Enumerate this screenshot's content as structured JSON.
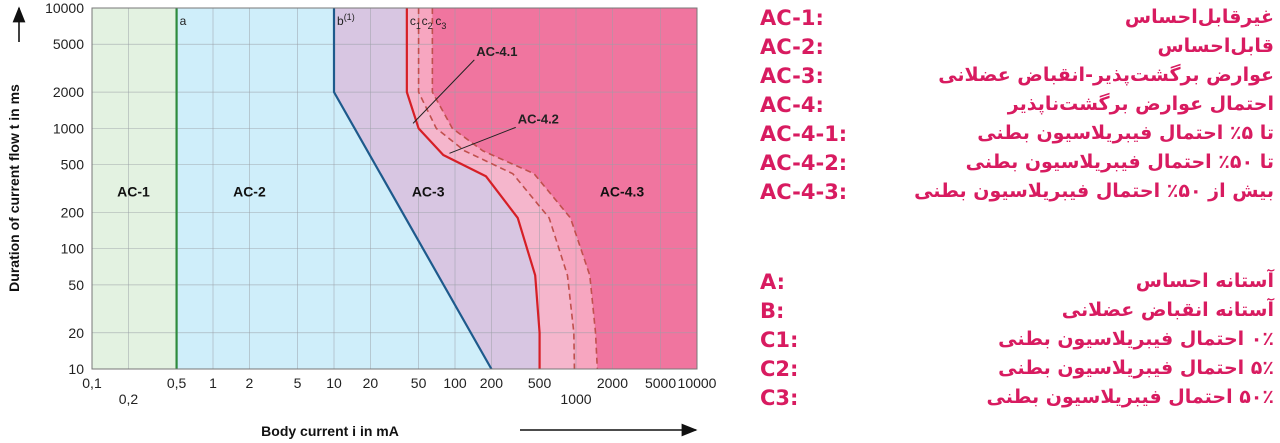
{
  "chart_data": {
    "type": "area",
    "xlabel": "Body current i   in mA",
    "ylabel": "Duration of current flow t in ms",
    "x_scale": "log",
    "y_scale": "log",
    "xlim": [
      0.1,
      10000
    ],
    "ylim": [
      10,
      10000
    ],
    "x_ticks_top_row": [
      "0,1",
      "0,5",
      "1",
      "2",
      "5",
      "10",
      "20",
      "50",
      "100",
      "200",
      "500",
      "2000",
      "5000",
      "10000"
    ],
    "x_ticks_bottom_row": [
      "0,2",
      "1000"
    ],
    "x_tick_values": [
      0.1,
      0.2,
      0.5,
      1,
      2,
      5,
      10,
      20,
      50,
      100,
      200,
      500,
      1000,
      2000,
      5000,
      10000
    ],
    "y_ticks": [
      "10",
      "20",
      "50",
      "100",
      "200",
      "500",
      "1000",
      "2000",
      "5000",
      "10000"
    ],
    "y_tick_values": [
      10,
      20,
      50,
      100,
      200,
      500,
      1000,
      2000,
      5000,
      10000
    ],
    "regions": [
      {
        "name": "AC-1",
        "color": "#e3f2e1"
      },
      {
        "name": "AC-2",
        "color": "#cfeefa"
      },
      {
        "name": "AC-3",
        "color": "#d8c6e2"
      },
      {
        "name": "AC-4.3",
        "color": "#f0759f"
      }
    ],
    "curves": [
      {
        "name": "a",
        "style": "solid",
        "color": "#2e8b3e",
        "points": [
          [
            0.5,
            10
          ],
          [
            0.5,
            10000
          ]
        ]
      },
      {
        "name": "b(1)",
        "style": "solid",
        "color": "#1e5a8c",
        "points": [
          [
            10,
            10000
          ],
          [
            10,
            2000
          ],
          [
            200,
            10
          ]
        ]
      },
      {
        "name": "c1",
        "style": "solid",
        "color": "#d61f26",
        "points": [
          [
            40,
            10000
          ],
          [
            40,
            2000
          ],
          [
            50,
            1000
          ],
          [
            80,
            600
          ],
          [
            180,
            400
          ],
          [
            330,
            180
          ],
          [
            460,
            60
          ],
          [
            500,
            20
          ],
          [
            500,
            10
          ]
        ]
      },
      {
        "name": "c2",
        "style": "dashed",
        "color": "#c0504d",
        "points": [
          [
            50,
            10000
          ],
          [
            50,
            2000
          ],
          [
            70,
            1000
          ],
          [
            120,
            650
          ],
          [
            300,
            420
          ],
          [
            600,
            180
          ],
          [
            850,
            60
          ],
          [
            960,
            20
          ],
          [
            970,
            10
          ]
        ]
      },
      {
        "name": "c3",
        "style": "dashed",
        "color": "#c0504d",
        "points": [
          [
            65,
            10000
          ],
          [
            65,
            2000
          ],
          [
            95,
            1000
          ],
          [
            170,
            650
          ],
          [
            450,
            420
          ],
          [
            900,
            180
          ],
          [
            1300,
            60
          ],
          [
            1450,
            20
          ],
          [
            1500,
            10
          ]
        ]
      }
    ],
    "region_labels": [
      {
        "text": "AC-1",
        "x": 0.22,
        "y": 300
      },
      {
        "text": "AC-2",
        "x": 2,
        "y": 300
      },
      {
        "text": "AC-3",
        "x": 60,
        "y": 300
      },
      {
        "text": "AC-4.3",
        "x": 2400,
        "y": 300
      }
    ],
    "callouts": [
      {
        "text": "AC-4.1",
        "label_at": [
          150,
          4000
        ],
        "points_to": [
          45,
          1100
        ]
      },
      {
        "text": "AC-4.2",
        "label_at": [
          330,
          1100
        ],
        "points_to": [
          90,
          620
        ]
      }
    ],
    "threshold_labels": [
      {
        "text": "a",
        "x": 0.5
      },
      {
        "text": "b",
        "sup": "(1)",
        "x": 10
      },
      {
        "text": "c",
        "sub": "1",
        "x": 40
      },
      {
        "text": "c",
        "sub": "2",
        "x": 50
      },
      {
        "text": "c",
        "sub": "3",
        "x": 65
      }
    ]
  },
  "legend": {
    "zones": [
      {
        "code": "AC-1:",
        "text": "غیرقابل‌احساس"
      },
      {
        "code": "AC-2:",
        "text": "قابل‌احساس"
      },
      {
        "code": "AC-3:",
        "text": "عوارض برگشت‌پذیر-انقباض عضلانی"
      },
      {
        "code": "AC-4:",
        "text": "احتمال عوارض برگشت‌ناپذیر"
      },
      {
        "code": "AC-4-1:",
        "text": "تا ۵٪ احتمال فیبریلاسیون بطنی"
      },
      {
        "code": "AC-4-2:",
        "text": "تا ۵۰٪ احتمال فیبریلاسیون بطنی"
      },
      {
        "code": "AC-4-3:",
        "text": "بیش از ۵۰٪ احتمال فیبریلاسیون بطنی"
      }
    ],
    "thresholds": [
      {
        "code": "A:",
        "text": "آستانه احساس"
      },
      {
        "code": "B:",
        "text": "آستانه انقباض عضلانی"
      },
      {
        "code": "C1:",
        "text": "۰٪ احتمال فیبریلاسیون بطنی"
      },
      {
        "code": "C2:",
        "text": "۵٪ احتمال فیبریلاسیون بطنی"
      },
      {
        "code": "C3:",
        "text": "۵۰٪ احتمال فیبریلاسیون بطنی"
      }
    ]
  }
}
